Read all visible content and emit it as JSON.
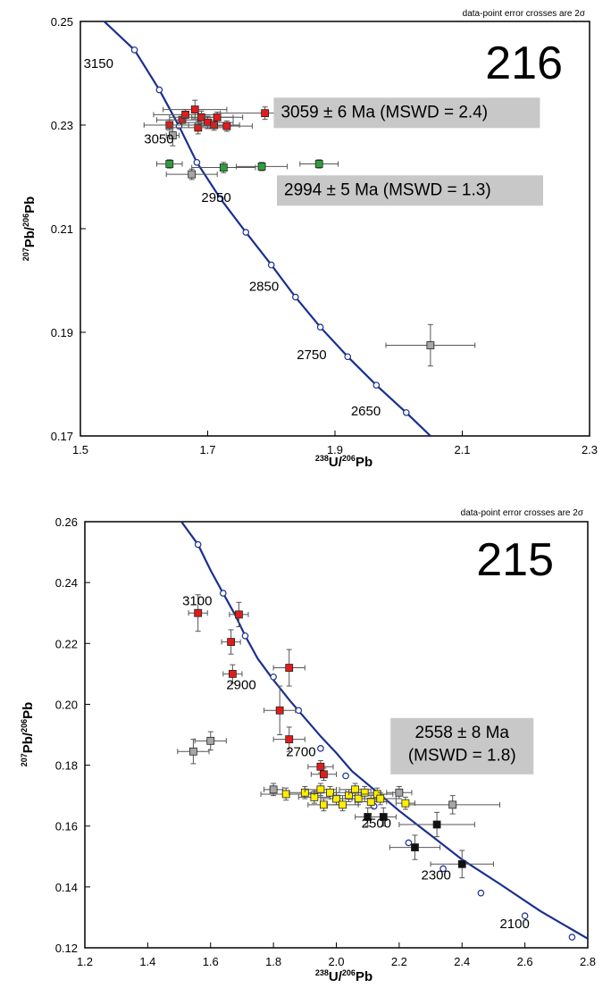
{
  "chart_data": [
    {
      "type": "scatter",
      "title": "216",
      "note": "data-point error crosses are 2σ",
      "xlabel": {
        "base": "U/",
        "sup1": "238",
        "sup2": "206",
        "end": "Pb"
      },
      "ylabel": {
        "sup1": "207",
        "mid": "Pb/",
        "sup2": "206",
        "end": "Pb"
      },
      "xlim": [
        1.5,
        2.3
      ],
      "ylim": [
        0.17,
        0.25
      ],
      "xticks": [
        "1.5",
        "1.7",
        "1.9",
        "2.1",
        "2.3"
      ],
      "yticks": [
        "0.17",
        "0.19",
        "0.21",
        "0.23",
        "0.25"
      ],
      "colors": {
        "curve": "#1a2f8f",
        "red": "#e31b1b",
        "green": "#2e9e3e",
        "gray": "#a6a6a6",
        "box": "#c8c8c8"
      },
      "concordia": [
        {
          "x": 1.52,
          "y": 0.252
        },
        {
          "x": 1.585,
          "y": 0.2445
        },
        {
          "x": 1.624,
          "y": 0.2368
        },
        {
          "x": 1.655,
          "y": 0.2298
        },
        {
          "x": 1.683,
          "y": 0.2228
        },
        {
          "x": 1.72,
          "y": 0.2158
        },
        {
          "x": 1.76,
          "y": 0.2093
        },
        {
          "x": 1.8,
          "y": 0.203
        },
        {
          "x": 1.838,
          "y": 0.1968
        },
        {
          "x": 1.877,
          "y": 0.191
        },
        {
          "x": 1.92,
          "y": 0.1853
        },
        {
          "x": 1.965,
          "y": 0.1798
        },
        {
          "x": 2.012,
          "y": 0.1745
        },
        {
          "x": 2.05,
          "y": 0.17
        }
      ],
      "ticks": [
        {
          "x": 1.585,
          "y": 0.2445
        },
        {
          "x": 1.624,
          "y": 0.2368
        },
        {
          "x": 1.655,
          "y": 0.2298
        },
        {
          "x": 1.683,
          "y": 0.2228
        },
        {
          "x": 1.72,
          "y": 0.2158
        },
        {
          "x": 1.76,
          "y": 0.2093
        },
        {
          "x": 1.8,
          "y": 0.203
        },
        {
          "x": 1.838,
          "y": 0.1968
        },
        {
          "x": 1.877,
          "y": 0.191
        },
        {
          "x": 1.92,
          "y": 0.1853
        },
        {
          "x": 1.965,
          "y": 0.1798
        },
        {
          "x": 2.012,
          "y": 0.1745
        }
      ],
      "age_labels": [
        {
          "text": "3150",
          "x": 1.505,
          "y": 0.241
        },
        {
          "text": "3050",
          "x": 1.6,
          "y": 0.2265
        },
        {
          "text": "2950",
          "x": 1.69,
          "y": 0.2152
        },
        {
          "text": "2850",
          "x": 1.765,
          "y": 0.198
        },
        {
          "text": "2750",
          "x": 1.84,
          "y": 0.1848
        },
        {
          "text": "2650",
          "x": 1.925,
          "y": 0.174
        }
      ],
      "points": [
        {
          "x": 1.64,
          "y": 0.23,
          "ex": 0.04,
          "ey": 0.001,
          "c": "red"
        },
        {
          "x": 1.66,
          "y": 0.231,
          "ex": 0.04,
          "ey": 0.001,
          "c": "red"
        },
        {
          "x": 1.665,
          "y": 0.232,
          "ex": 0.05,
          "ey": 0.001,
          "c": "red"
        },
        {
          "x": 1.68,
          "y": 0.233,
          "ex": 0.05,
          "ey": 0.0018,
          "c": "red"
        },
        {
          "x": 1.685,
          "y": 0.2295,
          "ex": 0.05,
          "ey": 0.0012,
          "c": "red"
        },
        {
          "x": 1.69,
          "y": 0.2315,
          "ex": 0.05,
          "ey": 0.0012,
          "c": "red"
        },
        {
          "x": 1.7,
          "y": 0.2305,
          "ex": 0.04,
          "ey": 0.0012,
          "c": "red"
        },
        {
          "x": 1.71,
          "y": 0.23,
          "ex": 0.04,
          "ey": 0.001,
          "c": "red"
        },
        {
          "x": 1.715,
          "y": 0.2315,
          "ex": 0.04,
          "ey": 0.001,
          "c": "red"
        },
        {
          "x": 1.73,
          "y": 0.2298,
          "ex": 0.04,
          "ey": 0.001,
          "c": "red"
        },
        {
          "x": 1.79,
          "y": 0.2323,
          "ex": 0.07,
          "ey": 0.0012,
          "c": "red"
        },
        {
          "x": 1.645,
          "y": 0.228,
          "ex": 0.01,
          "ey": 0.002,
          "c": "gray"
        },
        {
          "x": 1.64,
          "y": 0.2225,
          "ex": 0.02,
          "ey": 0.0008,
          "c": "green"
        },
        {
          "x": 1.725,
          "y": 0.2218,
          "ex": 0.05,
          "ey": 0.001,
          "c": "green"
        },
        {
          "x": 1.785,
          "y": 0.222,
          "ex": 0.04,
          "ey": 0.0008,
          "c": "green"
        },
        {
          "x": 1.875,
          "y": 0.2225,
          "ex": 0.03,
          "ey": 0.0008,
          "c": "green"
        },
        {
          "x": 1.675,
          "y": 0.2205,
          "ex": 0.04,
          "ey": 0.001,
          "c": "gray"
        },
        {
          "x": 2.05,
          "y": 0.1875,
          "ex": 0.07,
          "ey": 0.004,
          "c": "gray"
        }
      ],
      "annotations": [
        {
          "text": "3059 ± 6 Ma (MSWD = 2.4)",
          "x": 1.815,
          "y": 0.2315
        },
        {
          "text": "2994 ± 5 Ma (MSWD = 1.3)",
          "x": 1.82,
          "y": 0.2165
        }
      ]
    },
    {
      "type": "scatter",
      "title": "215",
      "note": "data-point error crosses are 2σ",
      "xlabel": {
        "base": "U/",
        "sup1": "238",
        "sup2": "206",
        "end": "Pb"
      },
      "ylabel": {
        "sup1": "207",
        "mid": "Pb/",
        "sup2": "206",
        "end": "Pb"
      },
      "xlim": [
        1.2,
        2.8
      ],
      "ylim": [
        0.12,
        0.26
      ],
      "xticks": [
        "1.2",
        "1.4",
        "1.6",
        "1.8",
        "2.0",
        "2.2",
        "2.4",
        "2.6",
        "2.8"
      ],
      "yticks": [
        "0.12",
        "0.14",
        "0.16",
        "0.18",
        "0.20",
        "0.22",
        "0.24",
        "0.26"
      ],
      "colors": {
        "curve": "#1a2f8f",
        "red": "#e31b1b",
        "yellow": "#ffee00",
        "black": "#111111",
        "gray": "#a6a6a6",
        "box": "#c8c8c8"
      },
      "concordia": [
        {
          "x": 1.5,
          "y": 0.261
        },
        {
          "x": 1.56,
          "y": 0.2525
        },
        {
          "x": 1.6,
          "y": 0.244
        },
        {
          "x": 1.64,
          "y": 0.2365
        },
        {
          "x": 1.68,
          "y": 0.229
        },
        {
          "x": 1.71,
          "y": 0.2225
        },
        {
          "x": 1.75,
          "y": 0.215
        },
        {
          "x": 1.8,
          "y": 0.208
        },
        {
          "x": 1.85,
          "y": 0.2015
        },
        {
          "x": 1.9,
          "y": 0.1955
        },
        {
          "x": 1.95,
          "y": 0.1895
        },
        {
          "x": 2.0,
          "y": 0.184
        },
        {
          "x": 2.05,
          "y": 0.178
        },
        {
          "x": 2.12,
          "y": 0.172
        },
        {
          "x": 2.2,
          "y": 0.165
        },
        {
          "x": 2.3,
          "y": 0.157
        },
        {
          "x": 2.4,
          "y": 0.149
        },
        {
          "x": 2.52,
          "y": 0.141
        },
        {
          "x": 2.65,
          "y": 0.132
        },
        {
          "x": 2.8,
          "y": 0.123
        }
      ],
      "ticks": [
        {
          "x": 1.56,
          "y": 0.2525
        },
        {
          "x": 1.64,
          "y": 0.2365
        },
        {
          "x": 1.71,
          "y": 0.2225
        },
        {
          "x": 1.8,
          "y": 0.209
        },
        {
          "x": 1.88,
          "y": 0.198
        },
        {
          "x": 1.95,
          "y": 0.1855
        },
        {
          "x": 2.03,
          "y": 0.1765
        },
        {
          "x": 2.12,
          "y": 0.1665
        },
        {
          "x": 2.23,
          "y": 0.1545
        },
        {
          "x": 2.34,
          "y": 0.146
        },
        {
          "x": 2.46,
          "y": 0.138
        },
        {
          "x": 2.6,
          "y": 0.1305
        },
        {
          "x": 2.75,
          "y": 0.1235
        }
      ],
      "age_labels": [
        {
          "text": "3100",
          "x": 1.51,
          "y": 0.2325
        },
        {
          "text": "2900",
          "x": 1.65,
          "y": 0.205
        },
        {
          "text": "2700",
          "x": 1.84,
          "y": 0.183
        },
        {
          "text": "2500",
          "x": 2.08,
          "y": 0.1595
        },
        {
          "text": "2300",
          "x": 2.27,
          "y": 0.1425
        },
        {
          "text": "2100",
          "x": 2.52,
          "y": 0.1265
        }
      ],
      "points": [
        {
          "x": 1.56,
          "y": 0.23,
          "ex": 0.03,
          "ey": 0.006,
          "c": "red"
        },
        {
          "x": 1.69,
          "y": 0.2295,
          "ex": 0.03,
          "ey": 0.004,
          "c": "red"
        },
        {
          "x": 1.665,
          "y": 0.2205,
          "ex": 0.03,
          "ey": 0.004,
          "c": "red"
        },
        {
          "x": 1.67,
          "y": 0.21,
          "ex": 0.03,
          "ey": 0.003,
          "c": "red"
        },
        {
          "x": 1.85,
          "y": 0.212,
          "ex": 0.05,
          "ey": 0.006,
          "c": "red"
        },
        {
          "x": 1.82,
          "y": 0.198,
          "ex": 0.05,
          "ey": 0.008,
          "c": "red"
        },
        {
          "x": 1.85,
          "y": 0.1885,
          "ex": 0.05,
          "ey": 0.004,
          "c": "red"
        },
        {
          "x": 1.95,
          "y": 0.1795,
          "ex": 0.04,
          "ey": 0.002,
          "c": "red"
        },
        {
          "x": 1.96,
          "y": 0.177,
          "ex": 0.04,
          "ey": 0.002,
          "c": "red"
        },
        {
          "x": 1.545,
          "y": 0.1845,
          "ex": 0.05,
          "ey": 0.004,
          "c": "gray"
        },
        {
          "x": 1.6,
          "y": 0.188,
          "ex": 0.05,
          "ey": 0.003,
          "c": "gray"
        },
        {
          "x": 1.8,
          "y": 0.172,
          "ex": 0.03,
          "ey": 0.002,
          "c": "gray"
        },
        {
          "x": 2.37,
          "y": 0.167,
          "ex": 0.15,
          "ey": 0.003,
          "c": "gray"
        },
        {
          "x": 2.2,
          "y": 0.171,
          "ex": 0.04,
          "ey": 0.002,
          "c": "gray"
        },
        {
          "x": 1.84,
          "y": 0.1705,
          "ex": 0.08,
          "ey": 0.002,
          "c": "yellow"
        },
        {
          "x": 1.9,
          "y": 0.171,
          "ex": 0.05,
          "ey": 0.002,
          "c": "yellow"
        },
        {
          "x": 1.93,
          "y": 0.1695,
          "ex": 0.05,
          "ey": 0.002,
          "c": "yellow"
        },
        {
          "x": 1.95,
          "y": 0.172,
          "ex": 0.05,
          "ey": 0.002,
          "c": "yellow"
        },
        {
          "x": 1.96,
          "y": 0.167,
          "ex": 0.05,
          "ey": 0.002,
          "c": "yellow"
        },
        {
          "x": 1.98,
          "y": 0.171,
          "ex": 0.05,
          "ey": 0.002,
          "c": "yellow"
        },
        {
          "x": 2.0,
          "y": 0.169,
          "ex": 0.05,
          "ey": 0.002,
          "c": "yellow"
        },
        {
          "x": 2.02,
          "y": 0.167,
          "ex": 0.05,
          "ey": 0.002,
          "c": "yellow"
        },
        {
          "x": 2.04,
          "y": 0.17,
          "ex": 0.05,
          "ey": 0.002,
          "c": "yellow"
        },
        {
          "x": 2.06,
          "y": 0.172,
          "ex": 0.05,
          "ey": 0.002,
          "c": "yellow"
        },
        {
          "x": 2.07,
          "y": 0.169,
          "ex": 0.05,
          "ey": 0.002,
          "c": "yellow"
        },
        {
          "x": 2.09,
          "y": 0.171,
          "ex": 0.05,
          "ey": 0.002,
          "c": "yellow"
        },
        {
          "x": 2.11,
          "y": 0.168,
          "ex": 0.05,
          "ey": 0.002,
          "c": "yellow"
        },
        {
          "x": 2.13,
          "y": 0.1705,
          "ex": 0.05,
          "ey": 0.002,
          "c": "yellow"
        },
        {
          "x": 2.14,
          "y": 0.169,
          "ex": 0.05,
          "ey": 0.002,
          "c": "yellow"
        },
        {
          "x": 2.22,
          "y": 0.1675,
          "ex": 0.03,
          "ey": 0.002,
          "c": "yellow"
        },
        {
          "x": 2.1,
          "y": 0.163,
          "ex": 0.04,
          "ey": 0.003,
          "c": "black"
        },
        {
          "x": 2.15,
          "y": 0.163,
          "ex": 0.04,
          "ey": 0.003,
          "c": "black"
        },
        {
          "x": 2.32,
          "y": 0.1605,
          "ex": 0.12,
          "ey": 0.004,
          "c": "black"
        },
        {
          "x": 2.25,
          "y": 0.153,
          "ex": 0.08,
          "ey": 0.004,
          "c": "black"
        },
        {
          "x": 2.4,
          "y": 0.1475,
          "ex": 0.1,
          "ey": 0.0045,
          "c": "black"
        }
      ],
      "annotations": [
        {
          "text": "2558 ± 8 Ma",
          "x": 2.4,
          "y": 0.189
        },
        {
          "text": "(MSWD = 1.8)",
          "x": 2.4,
          "y": 0.1815
        }
      ]
    }
  ]
}
